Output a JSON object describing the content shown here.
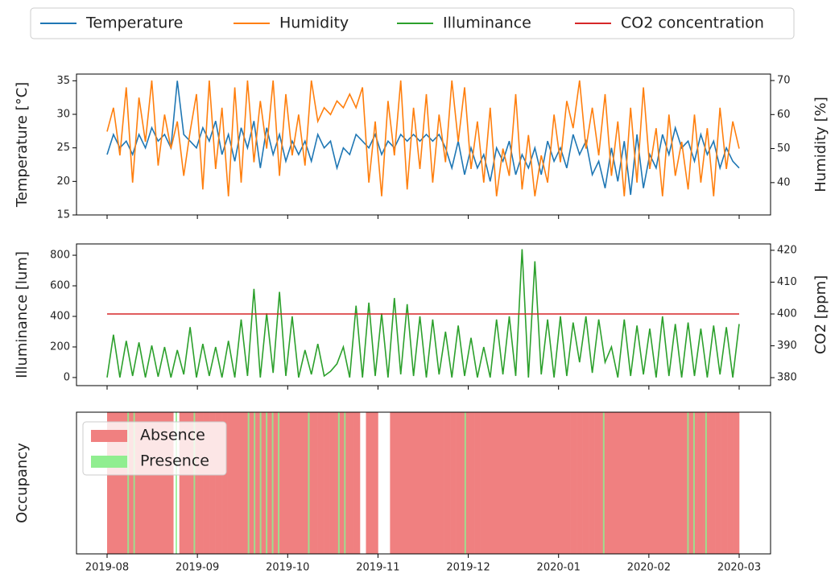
{
  "chart_data": [
    {
      "type": "line",
      "ylabel": "Temperature [°C]",
      "y2label": "Humidity [%]",
      "ylim": [
        15,
        36
      ],
      "yticks": [
        15,
        20,
        25,
        30,
        35
      ],
      "y2lim": [
        30.5,
        71.9
      ],
      "y2ticks": [
        40,
        50,
        60,
        70
      ],
      "series": [
        {
          "name": "Temperature",
          "color": "#1f77b4",
          "values": [
            24,
            27,
            25,
            26,
            24,
            27,
            25,
            28,
            26,
            27,
            25,
            35,
            27,
            26,
            25,
            28,
            26,
            29,
            24,
            27,
            23,
            28,
            25,
            29,
            22,
            28,
            24,
            27,
            23,
            26,
            24,
            26,
            23,
            27,
            25,
            26,
            22,
            25,
            24,
            27,
            26,
            25,
            27,
            24,
            26,
            25,
            27,
            26,
            27,
            26,
            27,
            26,
            27,
            25,
            22,
            26,
            21,
            25,
            22,
            24,
            20,
            25,
            23,
            26,
            21,
            24,
            22,
            25,
            21,
            26,
            23,
            25,
            22,
            27,
            24,
            26,
            21,
            23,
            19,
            25,
            20,
            26,
            18,
            27,
            19,
            24,
            22,
            27,
            24,
            28,
            25,
            26,
            23,
            27,
            24,
            26,
            22,
            25,
            23,
            22
          ]
        },
        {
          "name": "Humidity",
          "color": "#ff7f0e",
          "axis": "y2",
          "values": [
            55,
            62,
            48,
            68,
            40,
            65,
            52,
            70,
            45,
            60,
            50,
            58,
            42,
            55,
            66,
            38,
            70,
            44,
            62,
            36,
            68,
            40,
            70,
            46,
            64,
            50,
            70,
            42,
            66,
            48,
            60,
            45,
            70,
            58,
            62,
            60,
            64,
            62,
            66,
            62,
            68,
            40,
            58,
            36,
            64,
            48,
            70,
            38,
            62,
            44,
            66,
            40,
            60,
            46,
            70,
            52,
            68,
            44,
            58,
            40,
            62,
            36,
            50,
            42,
            66,
            38,
            54,
            36,
            48,
            40,
            60,
            46,
            64,
            56,
            70,
            50,
            62,
            48,
            66,
            42,
            58,
            36,
            62,
            40,
            68,
            44,
            56,
            36,
            60,
            42,
            52,
            38,
            60,
            40,
            56,
            36,
            62,
            44,
            58,
            50
          ]
        }
      ]
    },
    {
      "type": "line",
      "ylabel": "Illuminance [lum]",
      "y2label": "CO2 [ppm]",
      "ylim": [
        -53,
        874
      ],
      "yticks": [
        0,
        200,
        400,
        600,
        800
      ],
      "y2lim": [
        377.5,
        422
      ],
      "y2ticks": [
        380,
        390,
        400,
        410,
        420
      ],
      "series": [
        {
          "name": "Illuminance",
          "color": "#2ca02c",
          "values": [
            0,
            280,
            0,
            240,
            10,
            230,
            0,
            210,
            5,
            200,
            0,
            180,
            20,
            330,
            0,
            220,
            10,
            200,
            0,
            240,
            0,
            380,
            10,
            580,
            0,
            420,
            30,
            560,
            10,
            400,
            0,
            180,
            20,
            220,
            10,
            40,
            90,
            200,
            0,
            470,
            0,
            490,
            10,
            420,
            0,
            520,
            20,
            480,
            10,
            400,
            0,
            380,
            20,
            300,
            0,
            340,
            10,
            260,
            0,
            200,
            0,
            380,
            20,
            400,
            10,
            840,
            0,
            760,
            20,
            380,
            0,
            400,
            10,
            360,
            100,
            400,
            30,
            380,
            100,
            200,
            0,
            380,
            10,
            340,
            20,
            320,
            0,
            400,
            10,
            350,
            0,
            360,
            10,
            320,
            0,
            340,
            20,
            330,
            0,
            350
          ]
        },
        {
          "name": "CO2 concentration",
          "color": "#d62728",
          "axis": "y2",
          "values": [
            400,
            400
          ]
        }
      ]
    },
    {
      "type": "occupancy",
      "ylabel": "Occupancy",
      "legend": "upper left",
      "xticks": [
        "2019-08",
        "2019-09",
        "2019-10",
        "2019-11",
        "2019-12",
        "2020-01",
        "2020-02",
        "2020-03"
      ],
      "series": [
        {
          "name": "Absence",
          "color": "#f08080",
          "values": [
            1,
            1,
            1,
            1,
            1,
            1,
            1,
            1,
            1,
            1,
            1,
            0,
            1,
            1,
            1,
            1,
            1,
            1,
            1,
            1,
            1,
            1,
            1,
            1,
            1,
            1,
            1,
            1,
            1,
            1,
            1,
            1,
            1,
            1,
            1,
            1,
            1,
            1,
            1,
            1,
            1,
            1,
            0,
            1,
            1,
            0,
            0,
            1,
            1,
            1,
            1,
            1,
            1,
            1,
            1,
            1,
            1,
            1,
            1,
            1,
            1,
            1,
            1,
            1,
            1,
            1,
            1,
            1,
            1,
            1,
            1,
            1,
            1,
            1,
            1,
            1,
            1,
            1,
            1,
            1,
            1,
            1,
            1,
            1,
            1,
            1,
            1,
            1,
            1,
            1,
            1,
            1,
            1,
            1,
            1,
            1,
            1,
            1,
            1,
            1,
            1,
            1,
            1,
            1,
            1
          ]
        },
        {
          "name": "Presence",
          "color": "#90ee90",
          "values": [
            0,
            0,
            0,
            1,
            1,
            0,
            0,
            0,
            0,
            0,
            0,
            1,
            0,
            0,
            1,
            0,
            0,
            0,
            0,
            0,
            0,
            0,
            0,
            1,
            1,
            1,
            1,
            1,
            1,
            0,
            0,
            0,
            0,
            1,
            0,
            0,
            0,
            0,
            1,
            1,
            0,
            0,
            0,
            0,
            0,
            0,
            0,
            0,
            0,
            0,
            0,
            0,
            0,
            0,
            0,
            0,
            0,
            0,
            0,
            1,
            0,
            0,
            0,
            0,
            0,
            0,
            0,
            0,
            0,
            0,
            0,
            0,
            0,
            0,
            0,
            0,
            0,
            0,
            0,
            0,
            0,
            0,
            1,
            0,
            0,
            0,
            0,
            0,
            0,
            0,
            0,
            0,
            0,
            0,
            0,
            0,
            1,
            1,
            0,
            1,
            0,
            0,
            0,
            0,
            0
          ]
        }
      ]
    }
  ]
}
